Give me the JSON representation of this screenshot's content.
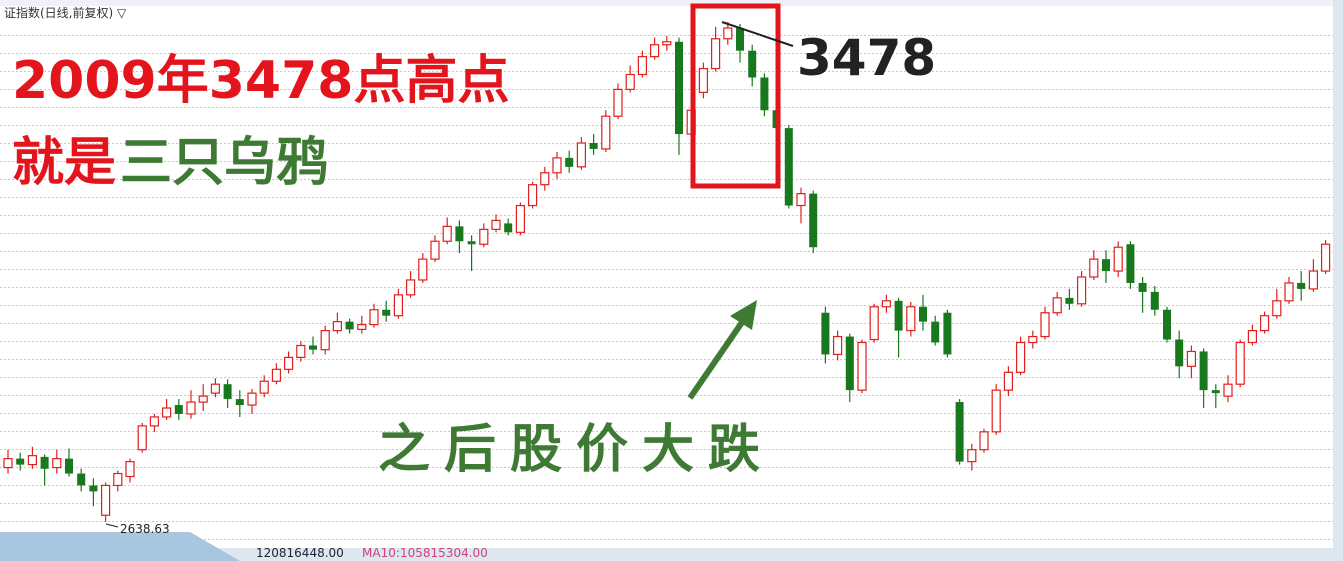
{
  "chart_data": {
    "type": "candlestick",
    "header": "证指数(日线,前复权) ▽",
    "ylim": [
      2600,
      3500
    ],
    "grid": true,
    "up_color": "#e0201c",
    "down_color": "#18781e",
    "open": [
      2730,
      2745,
      2735,
      2748,
      2730,
      2745,
      2720,
      2700,
      2650,
      2700,
      2715,
      2760,
      2800,
      2815,
      2835,
      2820,
      2840,
      2855,
      2870,
      2845,
      2835,
      2855,
      2875,
      2895,
      2915,
      2935,
      2928,
      2960,
      2975,
      2962,
      2970,
      2995,
      2985,
      3020,
      3045,
      3080,
      3110,
      3135,
      3110,
      3105,
      3130,
      3140,
      3125,
      3170,
      3205,
      3225,
      3250,
      3235,
      3275,
      3265,
      3320,
      3365,
      3390,
      3420,
      3440,
      3445,
      3290,
      3360,
      3400,
      3450,
      3468,
      3430,
      3385,
      3330,
      3300,
      3170,
      3190,
      2990,
      2920,
      2950,
      2860,
      2945,
      3000,
      3010,
      2960,
      3000,
      2975,
      2990,
      2840,
      2740,
      2760,
      2790,
      2860,
      2890,
      2940,
      2950,
      2990,
      3015,
      3005,
      3050,
      3080,
      3060,
      3105,
      3040,
      3025,
      2995,
      2945,
      2900,
      2925,
      2860,
      2850,
      2870,
      2940,
      2960,
      2985,
      3010,
      3040,
      3030,
      3060
    ],
    "high": [
      2760,
      2755,
      2765,
      2752,
      2760,
      2762,
      2728,
      2712,
      2705,
      2725,
      2745,
      2805,
      2820,
      2845,
      2845,
      2860,
      2870,
      2880,
      2878,
      2860,
      2862,
      2885,
      2905,
      2925,
      2942,
      2950,
      2968,
      2990,
      2980,
      2985,
      3005,
      3010,
      3030,
      3060,
      3090,
      3120,
      3150,
      3145,
      3120,
      3140,
      3155,
      3148,
      3175,
      3210,
      3235,
      3260,
      3262,
      3285,
      3290,
      3330,
      3375,
      3405,
      3430,
      3452,
      3455,
      3452,
      3345,
      3410,
      3470,
      3478,
      3475,
      3440,
      3392,
      3340,
      3305,
      3200,
      3195,
      3000,
      2960,
      2955,
      2945,
      3005,
      3020,
      3015,
      3008,
      3020,
      2985,
      2995,
      2845,
      2770,
      2795,
      2870,
      2900,
      2950,
      2960,
      3000,
      3025,
      3030,
      3060,
      3095,
      3095,
      3110,
      3110,
      3050,
      3035,
      3000,
      2960,
      2935,
      2930,
      2870,
      2885,
      2945,
      2970,
      2992,
      3030,
      3050,
      3060,
      3080,
      3112
    ],
    "low": [
      2720,
      2725,
      2728,
      2700,
      2720,
      2715,
      2690,
      2665,
      2638.63,
      2690,
      2705,
      2755,
      2790,
      2810,
      2810,
      2812,
      2825,
      2848,
      2830,
      2815,
      2820,
      2848,
      2870,
      2888,
      2908,
      2920,
      2920,
      2955,
      2955,
      2955,
      2965,
      2975,
      2980,
      3015,
      3040,
      3075,
      3105,
      3090,
      3060,
      3100,
      3125,
      3120,
      3120,
      3165,
      3195,
      3215,
      3225,
      3230,
      3255,
      3260,
      3315,
      3360,
      3385,
      3415,
      3430,
      3255,
      3275,
      3350,
      3395,
      3440,
      3410,
      3370,
      3320,
      3270,
      3165,
      3140,
      3090,
      2905,
      2910,
      2840,
      2855,
      2940,
      2990,
      2915,
      2950,
      2960,
      2935,
      2915,
      2735,
      2725,
      2755,
      2785,
      2850,
      2885,
      2930,
      2945,
      2985,
      2995,
      3000,
      3045,
      3040,
      3050,
      3030,
      2990,
      2985,
      2940,
      2880,
      2880,
      2830,
      2830,
      2840,
      2865,
      2935,
      2955,
      2980,
      3005,
      3010,
      3025,
      3055
    ],
    "close": [
      2745,
      2735,
      2750,
      2728,
      2745,
      2720,
      2700,
      2690,
      2700,
      2720,
      2740,
      2800,
      2815,
      2830,
      2820,
      2840,
      2850,
      2870,
      2845,
      2835,
      2855,
      2875,
      2895,
      2915,
      2935,
      2928,
      2960,
      2975,
      2962,
      2970,
      2995,
      2985,
      3020,
      3045,
      3080,
      3110,
      3135,
      3110,
      3105,
      3130,
      3145,
      3125,
      3170,
      3205,
      3225,
      3250,
      3235,
      3275,
      3265,
      3320,
      3365,
      3390,
      3420,
      3440,
      3445,
      3290,
      3330,
      3400,
      3450,
      3468,
      3430,
      3385,
      3330,
      3300,
      3170,
      3190,
      3100,
      2920,
      2950,
      2860,
      2940,
      3000,
      3010,
      2960,
      3000,
      2975,
      2940,
      2920,
      2740,
      2760,
      2790,
      2860,
      2890,
      2940,
      2950,
      2990,
      3015,
      3005,
      3050,
      3080,
      3060,
      3100,
      3040,
      3025,
      2995,
      2945,
      2900,
      2925,
      2860,
      2855,
      2870,
      2940,
      2960,
      2985,
      3010,
      3040,
      3030,
      3060,
      3105
    ],
    "annotations": [
      {
        "text": "2009年3478点高点",
        "color": "#e3141c"
      },
      {
        "text": "就是",
        "color": "#e3141c"
      },
      {
        "text": "三只乌鸦",
        "color": "#3f7a35"
      },
      {
        "text": "之后股价大跌",
        "color": "#3f7a35"
      }
    ],
    "volume": {
      "value": 120816448,
      "label": "120816448.00"
    },
    "ma10_name": "MA10:",
    "ma10": {
      "value": 105815304,
      "label": "105815304.00"
    }
  }
}
